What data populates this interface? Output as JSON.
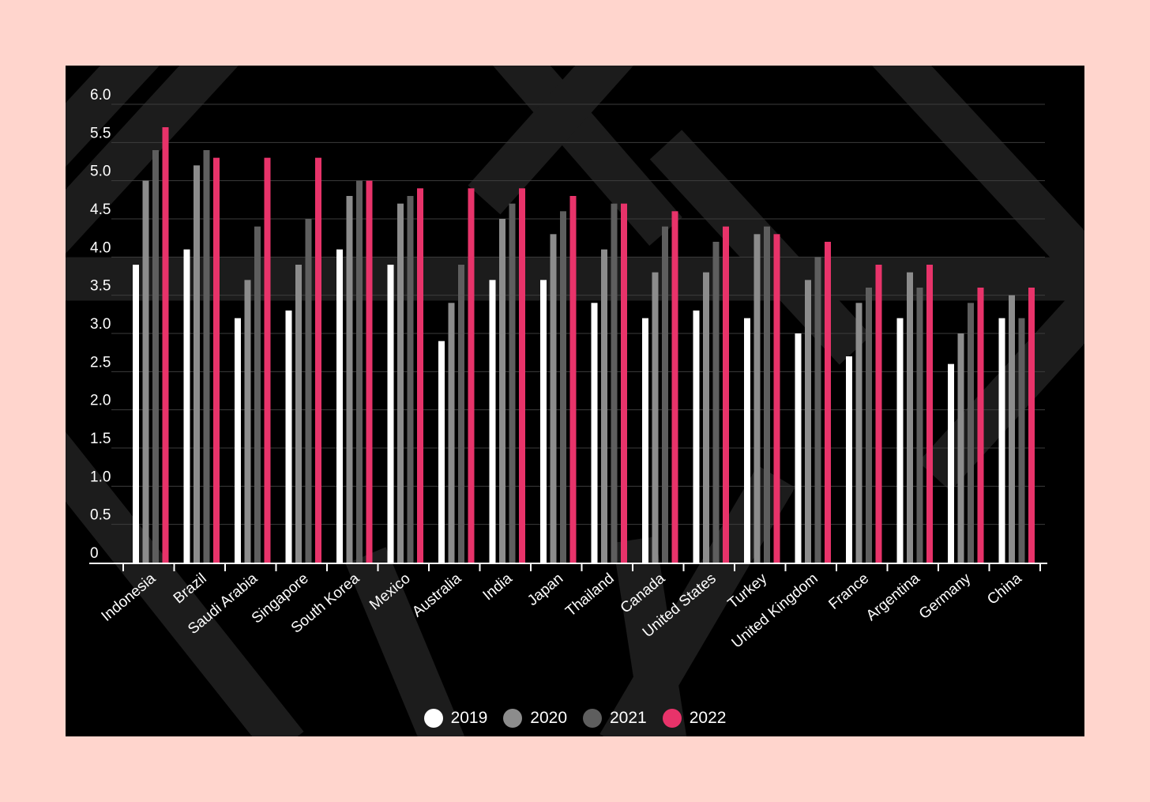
{
  "chart_data": {
    "type": "bar",
    "title": "",
    "xlabel": "",
    "ylabel": "",
    "ylim": [
      0,
      6
    ],
    "yticks": [
      "0",
      "0.5",
      "1.0",
      "1.5",
      "2.0",
      "2.5",
      "3.0",
      "3.5",
      "4.0",
      "4.5",
      "5.0",
      "5.5",
      "6.0"
    ],
    "grid": true,
    "legend_position": "bottom-center",
    "categories": [
      "Indonesia",
      "Brazil",
      "Saudi Arabia",
      "Singapore",
      "South Korea",
      "Mexico",
      "Australia",
      "India",
      "Japan",
      "Thailand",
      "Canada",
      "United States",
      "Turkey",
      "United Kingdom",
      "France",
      "Argentina",
      "Germany",
      "China"
    ],
    "series": [
      {
        "name": "2019",
        "color": "#ffffff",
        "values": [
          3.9,
          4.1,
          3.2,
          3.3,
          4.1,
          3.9,
          2.9,
          3.7,
          3.7,
          3.4,
          3.2,
          3.3,
          3.2,
          3.0,
          2.7,
          3.2,
          2.6,
          3.2
        ]
      },
      {
        "name": "2020",
        "color": "#8c8c8c",
        "values": [
          5.0,
          5.2,
          3.7,
          3.9,
          4.8,
          4.7,
          3.4,
          4.5,
          4.3,
          4.1,
          3.8,
          3.8,
          4.3,
          3.7,
          3.4,
          3.8,
          3.0,
          3.5
        ]
      },
      {
        "name": "2021",
        "color": "#5e5e5e",
        "values": [
          5.4,
          5.4,
          4.4,
          4.5,
          5.0,
          4.8,
          3.9,
          4.7,
          4.6,
          4.7,
          4.4,
          4.2,
          4.4,
          4.0,
          3.6,
          3.6,
          3.4,
          3.2
        ]
      },
      {
        "name": "2022",
        "color": "#e8336a",
        "values": [
          5.7,
          5.3,
          5.3,
          5.3,
          5.0,
          4.9,
          4.9,
          4.9,
          4.8,
          4.7,
          4.6,
          4.4,
          4.3,
          4.2,
          3.9,
          3.9,
          3.6,
          3.6
        ]
      }
    ]
  }
}
